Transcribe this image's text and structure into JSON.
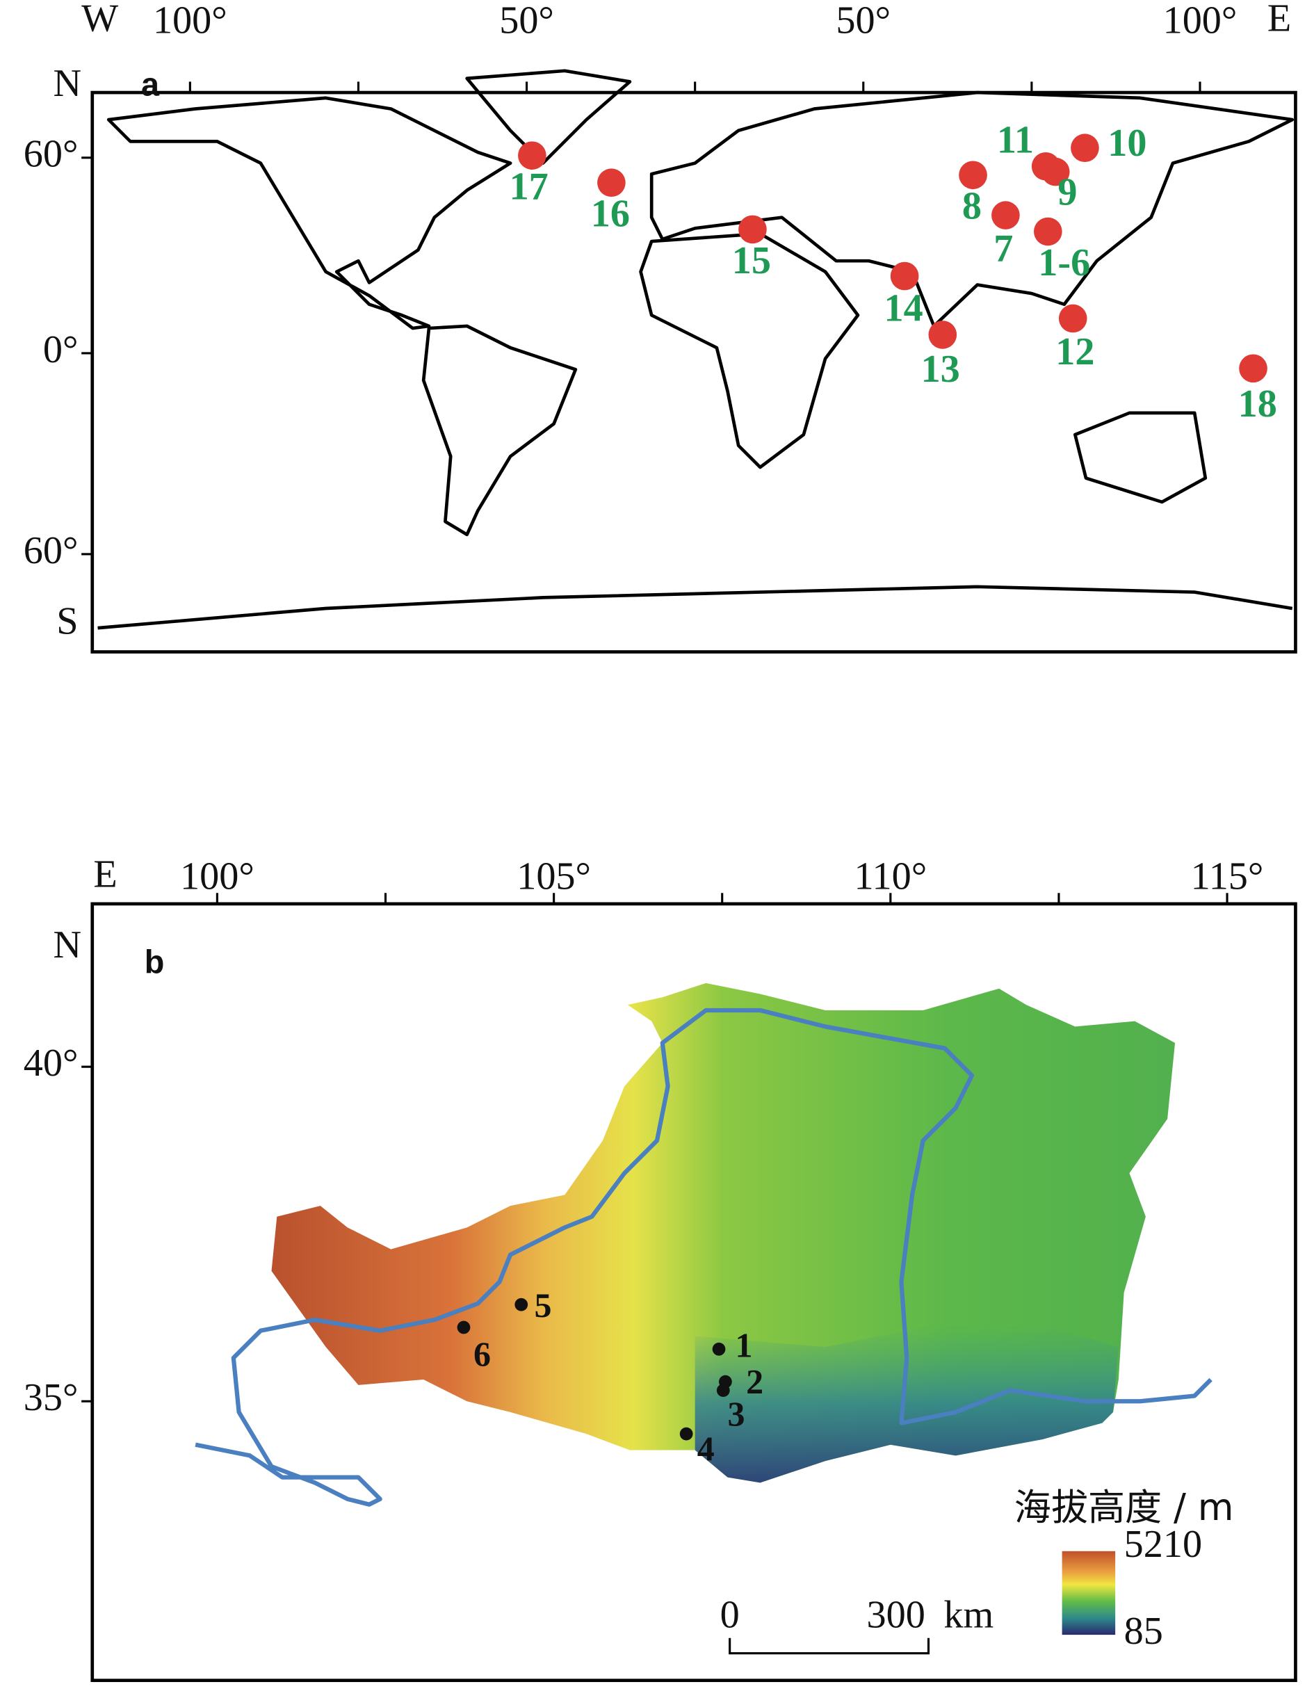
{
  "panel_a": {
    "label": "a",
    "x_ends": [
      "W",
      "E"
    ],
    "x_ticks": [
      "100°",
      "50°",
      "50°",
      "100°"
    ],
    "y_ends": [
      "N",
      "S"
    ],
    "y_ticks": [
      "60°",
      "0°",
      "60°"
    ],
    "sites": [
      "17",
      "16",
      "15",
      "14",
      "13",
      "12",
      "8",
      "7",
      "1-6",
      "11",
      "9",
      "10",
      "18"
    ]
  },
  "panel_b": {
    "label": "b",
    "x_ends": [
      "E"
    ],
    "x_ticks": [
      "100°",
      "105°",
      "110°",
      "115°"
    ],
    "y_ends": [
      "N"
    ],
    "y_ticks": [
      "40°",
      "35°"
    ],
    "sites": [
      "1",
      "2",
      "3",
      "4",
      "5",
      "6"
    ],
    "legend": {
      "title": "海拔高度 / m",
      "max": 5210,
      "min": 85
    },
    "scale_bar": {
      "start": 0,
      "end": 300,
      "unit": "km"
    }
  }
}
